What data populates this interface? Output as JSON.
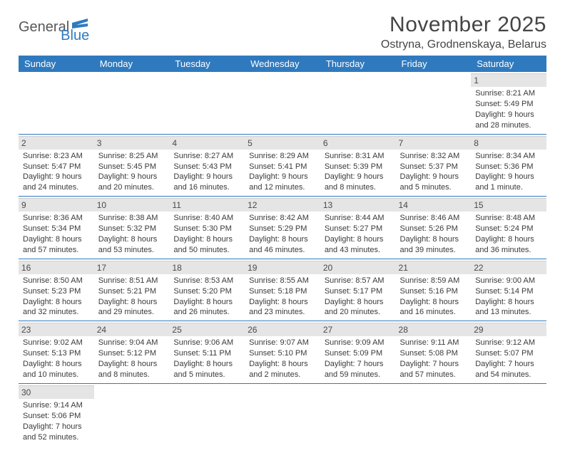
{
  "logo": {
    "part1": "General",
    "part2": "Blue"
  },
  "title": "November 2025",
  "location": "Ostryna, Grodnenskaya, Belarus",
  "colors": {
    "header_bg": "#2f7abf",
    "header_fg": "#ffffff",
    "daynum_bg": "#e5e5e5",
    "text": "#3a3a3a",
    "page_bg": "#ffffff",
    "row_border": "#2f7abf"
  },
  "typography": {
    "title_fontsize_pt": 22,
    "location_fontsize_pt": 12,
    "dayheader_fontsize_pt": 10,
    "cell_fontsize_pt": 8
  },
  "day_headers": [
    "Sunday",
    "Monday",
    "Tuesday",
    "Wednesday",
    "Thursday",
    "Friday",
    "Saturday"
  ],
  "layout": {
    "columns": 7,
    "rows": 6,
    "first_weekday_index": 6
  },
  "days": [
    {
      "n": 1,
      "sunrise": "8:21 AM",
      "sunset": "5:49 PM",
      "daylight": "9 hours and 28 minutes."
    },
    {
      "n": 2,
      "sunrise": "8:23 AM",
      "sunset": "5:47 PM",
      "daylight": "9 hours and 24 minutes."
    },
    {
      "n": 3,
      "sunrise": "8:25 AM",
      "sunset": "5:45 PM",
      "daylight": "9 hours and 20 minutes."
    },
    {
      "n": 4,
      "sunrise": "8:27 AM",
      "sunset": "5:43 PM",
      "daylight": "9 hours and 16 minutes."
    },
    {
      "n": 5,
      "sunrise": "8:29 AM",
      "sunset": "5:41 PM",
      "daylight": "9 hours and 12 minutes."
    },
    {
      "n": 6,
      "sunrise": "8:31 AM",
      "sunset": "5:39 PM",
      "daylight": "9 hours and 8 minutes."
    },
    {
      "n": 7,
      "sunrise": "8:32 AM",
      "sunset": "5:37 PM",
      "daylight": "9 hours and 5 minutes."
    },
    {
      "n": 8,
      "sunrise": "8:34 AM",
      "sunset": "5:36 PM",
      "daylight": "9 hours and 1 minute."
    },
    {
      "n": 9,
      "sunrise": "8:36 AM",
      "sunset": "5:34 PM",
      "daylight": "8 hours and 57 minutes."
    },
    {
      "n": 10,
      "sunrise": "8:38 AM",
      "sunset": "5:32 PM",
      "daylight": "8 hours and 53 minutes."
    },
    {
      "n": 11,
      "sunrise": "8:40 AM",
      "sunset": "5:30 PM",
      "daylight": "8 hours and 50 minutes."
    },
    {
      "n": 12,
      "sunrise": "8:42 AM",
      "sunset": "5:29 PM",
      "daylight": "8 hours and 46 minutes."
    },
    {
      "n": 13,
      "sunrise": "8:44 AM",
      "sunset": "5:27 PM",
      "daylight": "8 hours and 43 minutes."
    },
    {
      "n": 14,
      "sunrise": "8:46 AM",
      "sunset": "5:26 PM",
      "daylight": "8 hours and 39 minutes."
    },
    {
      "n": 15,
      "sunrise": "8:48 AM",
      "sunset": "5:24 PM",
      "daylight": "8 hours and 36 minutes."
    },
    {
      "n": 16,
      "sunrise": "8:50 AM",
      "sunset": "5:23 PM",
      "daylight": "8 hours and 32 minutes."
    },
    {
      "n": 17,
      "sunrise": "8:51 AM",
      "sunset": "5:21 PM",
      "daylight": "8 hours and 29 minutes."
    },
    {
      "n": 18,
      "sunrise": "8:53 AM",
      "sunset": "5:20 PM",
      "daylight": "8 hours and 26 minutes."
    },
    {
      "n": 19,
      "sunrise": "8:55 AM",
      "sunset": "5:18 PM",
      "daylight": "8 hours and 23 minutes."
    },
    {
      "n": 20,
      "sunrise": "8:57 AM",
      "sunset": "5:17 PM",
      "daylight": "8 hours and 20 minutes."
    },
    {
      "n": 21,
      "sunrise": "8:59 AM",
      "sunset": "5:16 PM",
      "daylight": "8 hours and 16 minutes."
    },
    {
      "n": 22,
      "sunrise": "9:00 AM",
      "sunset": "5:14 PM",
      "daylight": "8 hours and 13 minutes."
    },
    {
      "n": 23,
      "sunrise": "9:02 AM",
      "sunset": "5:13 PM",
      "daylight": "8 hours and 10 minutes."
    },
    {
      "n": 24,
      "sunrise": "9:04 AM",
      "sunset": "5:12 PM",
      "daylight": "8 hours and 8 minutes."
    },
    {
      "n": 25,
      "sunrise": "9:06 AM",
      "sunset": "5:11 PM",
      "daylight": "8 hours and 5 minutes."
    },
    {
      "n": 26,
      "sunrise": "9:07 AM",
      "sunset": "5:10 PM",
      "daylight": "8 hours and 2 minutes."
    },
    {
      "n": 27,
      "sunrise": "9:09 AM",
      "sunset": "5:09 PM",
      "daylight": "7 hours and 59 minutes."
    },
    {
      "n": 28,
      "sunrise": "9:11 AM",
      "sunset": "5:08 PM",
      "daylight": "7 hours and 57 minutes."
    },
    {
      "n": 29,
      "sunrise": "9:12 AM",
      "sunset": "5:07 PM",
      "daylight": "7 hours and 54 minutes."
    },
    {
      "n": 30,
      "sunrise": "9:14 AM",
      "sunset": "5:06 PM",
      "daylight": "7 hours and 52 minutes."
    }
  ],
  "labels": {
    "sunrise": "Sunrise:",
    "sunset": "Sunset:",
    "daylight": "Daylight:"
  }
}
